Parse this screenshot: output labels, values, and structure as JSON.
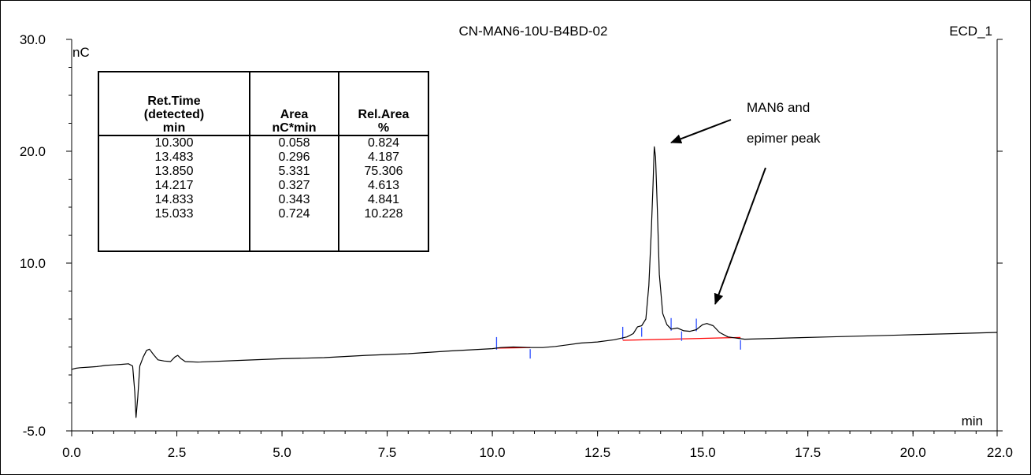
{
  "header": {
    "sample_name": "CN-MAN6-10U-B4BD-02",
    "detector": "ECD_1"
  },
  "chart_data": {
    "type": "line",
    "title": "CN-MAN6-10U-B4BD-02",
    "xlabel": "min",
    "ylabel": "nC",
    "xlim": [
      0.0,
      22.0
    ],
    "ylim": [
      -5.0,
      30.0
    ],
    "x_ticks": [
      "0.0",
      "2.5",
      "5.0",
      "7.5",
      "10.0",
      "12.5",
      "15.0",
      "17.5",
      "20.0",
      "22.0"
    ],
    "x_tick_values": [
      0.0,
      2.5,
      5.0,
      7.5,
      10.0,
      12.5,
      15.0,
      17.5,
      20.0,
      22.0
    ],
    "y_ticks": [
      "-5.0",
      "10.0",
      "20.0",
      "30.0"
    ],
    "y_tick_values": [
      -5.0,
      10.0,
      20.0,
      30.0
    ],
    "series": [
      {
        "color": "#000000",
        "points": [
          [
            0.0,
            0.5
          ],
          [
            0.1,
            0.6
          ],
          [
            0.2,
            0.65
          ],
          [
            0.4,
            0.7
          ],
          [
            0.6,
            0.75
          ],
          [
            0.8,
            0.85
          ],
          [
            1.0,
            0.9
          ],
          [
            1.2,
            0.95
          ],
          [
            1.35,
            1.0
          ],
          [
            1.45,
            0.8
          ],
          [
            1.5,
            -1.5
          ],
          [
            1.53,
            -3.8
          ],
          [
            1.57,
            -2.0
          ],
          [
            1.62,
            0.8
          ],
          [
            1.7,
            1.6
          ],
          [
            1.78,
            2.2
          ],
          [
            1.85,
            2.3
          ],
          [
            1.95,
            1.8
          ],
          [
            2.05,
            1.35
          ],
          [
            2.2,
            1.25
          ],
          [
            2.35,
            1.2
          ],
          [
            2.45,
            1.6
          ],
          [
            2.52,
            1.75
          ],
          [
            2.6,
            1.45
          ],
          [
            2.7,
            1.2
          ],
          [
            3.0,
            1.15
          ],
          [
            4.0,
            1.3
          ],
          [
            5.0,
            1.45
          ],
          [
            6.0,
            1.55
          ],
          [
            7.0,
            1.75
          ],
          [
            8.0,
            1.9
          ],
          [
            9.0,
            2.15
          ],
          [
            10.0,
            2.35
          ],
          [
            10.2,
            2.45
          ],
          [
            10.5,
            2.5
          ],
          [
            10.9,
            2.45
          ],
          [
            11.2,
            2.45
          ],
          [
            11.5,
            2.55
          ],
          [
            11.8,
            2.7
          ],
          [
            12.1,
            2.85
          ],
          [
            12.5,
            2.95
          ],
          [
            12.9,
            3.15
          ],
          [
            13.2,
            3.4
          ],
          [
            13.35,
            3.7
          ],
          [
            13.45,
            4.3
          ],
          [
            13.55,
            4.4
          ],
          [
            13.65,
            5.0
          ],
          [
            13.72,
            8.0
          ],
          [
            13.78,
            13.0
          ],
          [
            13.82,
            17.0
          ],
          [
            13.85,
            20.4
          ],
          [
            13.88,
            19.5
          ],
          [
            13.92,
            15.0
          ],
          [
            13.97,
            9.0
          ],
          [
            14.05,
            5.5
          ],
          [
            14.15,
            4.5
          ],
          [
            14.25,
            4.1
          ],
          [
            14.4,
            4.2
          ],
          [
            14.55,
            3.95
          ],
          [
            14.7,
            3.9
          ],
          [
            14.85,
            4.05
          ],
          [
            15.0,
            4.5
          ],
          [
            15.1,
            4.6
          ],
          [
            15.25,
            4.4
          ],
          [
            15.4,
            3.8
          ],
          [
            15.6,
            3.4
          ],
          [
            16.0,
            3.2
          ],
          [
            16.5,
            3.25
          ],
          [
            17.0,
            3.3
          ],
          [
            18.0,
            3.4
          ],
          [
            19.0,
            3.5
          ],
          [
            20.0,
            3.6
          ],
          [
            21.0,
            3.7
          ],
          [
            22.0,
            3.8
          ]
        ]
      }
    ],
    "baselines": [
      {
        "color": "#FF0000",
        "points": [
          [
            10.1,
            2.4
          ],
          [
            10.9,
            2.45
          ]
        ]
      },
      {
        "color": "#FF0000",
        "points": [
          [
            13.1,
            3.1
          ],
          [
            15.9,
            3.35
          ]
        ]
      }
    ],
    "peak_markers": [
      10.1,
      10.9,
      13.1,
      13.55,
      14.25,
      14.5,
      14.85,
      15.9
    ],
    "annotation": {
      "text_line1": "MAN6 and",
      "text_line2": "epimer peak"
    },
    "grid": false
  },
  "peak_table": {
    "headers": [
      "Ret.Time\n(detected)\nmin",
      "Area\nnC*min",
      "Rel.Area\n%"
    ],
    "rows": [
      [
        "10.300",
        "0.058",
        "0.824"
      ],
      [
        "13.483",
        "0.296",
        "4.187"
      ],
      [
        "13.850",
        "5.331",
        "75.306"
      ],
      [
        "14.217",
        "0.327",
        "4.613"
      ],
      [
        "14.833",
        "0.343",
        "4.841"
      ],
      [
        "15.033",
        "0.724",
        "10.228"
      ]
    ]
  }
}
